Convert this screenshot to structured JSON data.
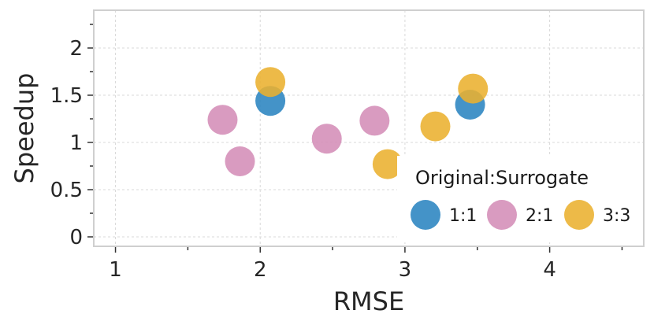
{
  "chart_data": {
    "type": "scatter",
    "xlabel": "RMSE",
    "ylabel": "Speedup",
    "xlim": [
      0.85,
      4.65
    ],
    "ylim": [
      -0.1,
      2.4
    ],
    "xticks": [
      1,
      2,
      3,
      4
    ],
    "xtick_labels": [
      "1",
      "2",
      "3",
      "4"
    ],
    "yticks": [
      0,
      0.5,
      1,
      1.5,
      2
    ],
    "ytick_labels": [
      "0",
      "0.5",
      "1",
      "1.5",
      "2"
    ],
    "grid": true,
    "legend": {
      "title": "Original:Surrogate",
      "placement": "bottom-right"
    },
    "series": [
      {
        "name": "1:1",
        "color": "#2a84c0",
        "points": [
          {
            "x": 2.07,
            "y": 1.44
          },
          {
            "x": 3.45,
            "y": 1.4
          }
        ]
      },
      {
        "name": "2:1",
        "color": "#d48db7",
        "points": [
          {
            "x": 1.74,
            "y": 1.24
          },
          {
            "x": 1.86,
            "y": 0.8
          },
          {
            "x": 2.46,
            "y": 1.04
          },
          {
            "x": 2.79,
            "y": 1.23
          }
        ]
      },
      {
        "name": "3:3",
        "color": "#eab02f",
        "points": [
          {
            "x": 2.07,
            "y": 1.64
          },
          {
            "x": 2.88,
            "y": 0.77
          },
          {
            "x": 3.21,
            "y": 1.17
          },
          {
            "x": 3.47,
            "y": 1.57
          }
        ]
      }
    ]
  }
}
